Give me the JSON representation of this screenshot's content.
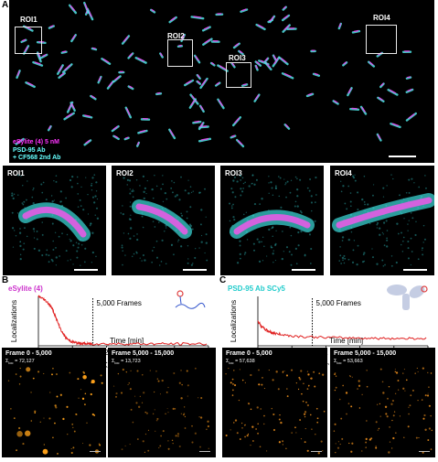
{
  "panel_a": {
    "letter": "A",
    "rois": [
      "ROI1",
      "ROI2",
      "ROI3",
      "ROI4"
    ],
    "legend": [
      {
        "text": "eSylite (4) 5 nM",
        "color": "#ff33ff"
      },
      {
        "text": "PSD-95 Ab",
        "color": "#66ffff"
      },
      {
        "text": "+ CF568 2nd Ab",
        "color": "#66ffff"
      }
    ],
    "zoom_labels": [
      "ROI1",
      "ROI2",
      "ROI3",
      "ROI4"
    ]
  },
  "panel_b": {
    "letter": "B",
    "title": "eSylite (4)",
    "title_color": "#cc33cc",
    "frames_label": "5,000 Frames",
    "frames": [
      {
        "title": "Frame 0 - 5,000",
        "sum_label": "Σ",
        "sub": "loc",
        "value": "= 72,127"
      },
      {
        "title": "Frame 5,000 - 15,000",
        "sum_label": "Σ",
        "sub": "loc",
        "value": "= 13,723"
      }
    ]
  },
  "panel_c": {
    "letter": "C",
    "title": "PSD-95 Ab SCy5",
    "title_color": "#22cccc",
    "frames_label": "5,000 Frames",
    "frames": [
      {
        "title": "Frame 0 - 5,000",
        "sum_label": "Σ",
        "sub": "loc",
        "value": "= 57,638"
      },
      {
        "title": "Frame 5,000 - 15,000",
        "sum_label": "Σ",
        "sub": "loc",
        "value": "= 53,663"
      }
    ]
  },
  "chart_data": [
    {
      "type": "line",
      "panel": "B",
      "ylabel": "Localizations",
      "xlabel": "Time [min]",
      "xlim": [
        0,
        5
      ],
      "xticks": [
        "0",
        "1",
        "2",
        "3",
        "4",
        "5"
      ],
      "color": "#e02020",
      "annotation_x": 1.6,
      "series": [
        {
          "x": [
            0,
            0.1,
            0.2,
            0.3,
            0.4,
            0.5,
            0.6,
            0.7,
            0.8,
            0.9,
            1.0,
            1.1,
            1.2,
            1.3,
            1.4,
            1.5,
            1.6,
            2,
            2.5,
            3,
            3.5,
            4,
            4.5,
            5
          ],
          "y": [
            1.0,
            0.97,
            0.92,
            0.86,
            0.76,
            0.6,
            0.42,
            0.27,
            0.17,
            0.11,
            0.08,
            0.06,
            0.05,
            0.05,
            0.04,
            0.04,
            0.04,
            0.04,
            0.04,
            0.04,
            0.04,
            0.04,
            0.04,
            0.04
          ]
        }
      ]
    },
    {
      "type": "line",
      "panel": "C",
      "ylabel": "Localizations",
      "xlabel": "Time [min]",
      "xlim": [
        0,
        5
      ],
      "xticks": [
        "0",
        "1",
        "2",
        "3",
        "4",
        "5"
      ],
      "color": "#e02020",
      "annotation_x": 1.6,
      "series": [
        {
          "x": [
            0,
            0.1,
            0.2,
            0.3,
            0.4,
            0.5,
            0.7,
            1.0,
            1.5,
            2,
            2.5,
            3,
            3.5,
            4,
            4.5,
            5
          ],
          "y": [
            0.5,
            0.4,
            0.34,
            0.3,
            0.27,
            0.25,
            0.23,
            0.2,
            0.18,
            0.17,
            0.16,
            0.16,
            0.15,
            0.15,
            0.15,
            0.15
          ]
        }
      ]
    }
  ]
}
